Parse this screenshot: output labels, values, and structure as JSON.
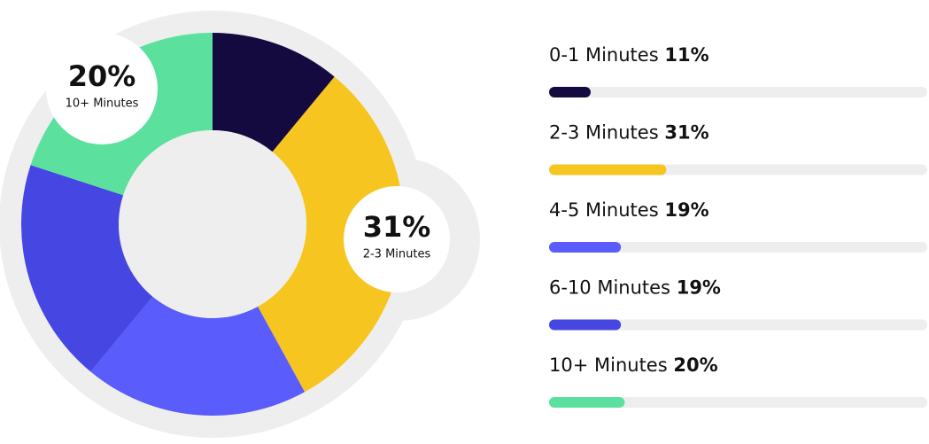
{
  "chart_data": {
    "type": "donut",
    "categories": [
      "0-1 Minutes",
      "2-3 Minutes",
      "4-5 Minutes",
      "6-10 Minutes",
      "10+ Minutes"
    ],
    "values": [
      11,
      31,
      19,
      19,
      20
    ],
    "value_labels": [
      "11%",
      "31%",
      "19%",
      "19%",
      "20%"
    ],
    "colors": [
      "#140a40",
      "#f7c520",
      "#5a5cfb",
      "#4646e3",
      "#5ce09e"
    ],
    "callouts": [
      4,
      1
    ]
  }
}
